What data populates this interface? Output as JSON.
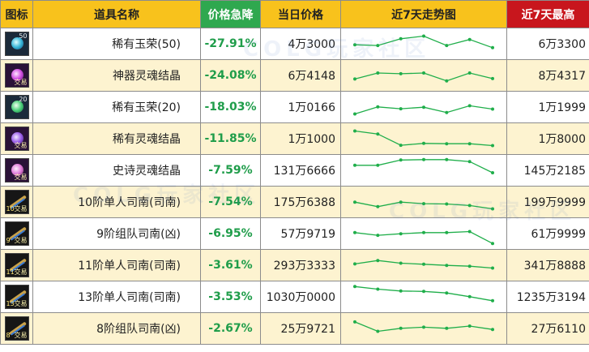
{
  "header": {
    "icon": "图标",
    "name": "道具名称",
    "drop": "价格急降",
    "price": "当日价格",
    "trend": "近7天走势图",
    "max7": "近7天最高"
  },
  "colors": {
    "header_bg": "#f8c21c",
    "drop_header_bg": "#2fa84f",
    "max_header_bg": "#c8161d",
    "drop_text": "#1f9d4a",
    "row_alt_bg": "#fdf3d0",
    "sparkline": "#1fae4a"
  },
  "watermark": "COLG玩家社区",
  "rows": [
    {
      "icon": {
        "name": "rare-jade-icon",
        "style": "blue",
        "num": "50",
        "trade": ""
      },
      "name": "稀有玉荣(50)",
      "drop": "-27.91%",
      "price": "4万3000",
      "max7": "6万3300",
      "trend": [
        3,
        2.8,
        4.6,
        5.3,
        2.8,
        4.4,
        2.2
      ]
    },
    {
      "icon": {
        "name": "artifact-soul-crystal-icon",
        "style": "purple",
        "num": "",
        "trade": "交易"
      },
      "name": "神器灵魂结晶",
      "drop": "-24.08%",
      "price": "6万4148",
      "max7": "8万4317",
      "trend": [
        2.3,
        3.9,
        3.7,
        3.9,
        1.8,
        3.9,
        2.4
      ]
    },
    {
      "icon": {
        "name": "rare-jade-icon",
        "style": "green",
        "num": "20",
        "trade": ""
      },
      "name": "稀有玉荣(20)",
      "drop": "-18.03%",
      "price": "1万0166",
      "max7": "1万1999",
      "trend": [
        1.4,
        3.3,
        2.8,
        3.2,
        1.8,
        3.6,
        2.7
      ]
    },
    {
      "icon": {
        "name": "rare-soul-crystal-icon",
        "style": "violet",
        "num": "",
        "trade": "交易"
      },
      "name": "稀有灵魂结晶",
      "drop": "-11.85%",
      "price": "1万1000",
      "max7": "1万8000",
      "trend": [
        5.3,
        4.5,
        1.5,
        2.0,
        1.9,
        1.9,
        1.4
      ]
    },
    {
      "icon": {
        "name": "epic-soul-crystal-icon",
        "style": "pink",
        "num": "",
        "trade": "交易"
      },
      "name": "史诗灵魂结晶",
      "drop": "-7.59%",
      "price": "131万6666",
      "max7": "145万2185",
      "trend": [
        4.6,
        4.6,
        6.0,
        6.1,
        6.1,
        5.6,
        2.6
      ]
    },
    {
      "icon": {
        "name": "tier10-solo-sinan-icon",
        "style": "blade",
        "num": "10",
        "trade": "交易"
      },
      "name": "10阶单人司南(司南)",
      "drop": "-7.54%",
      "price": "175万6388",
      "max7": "199万9999",
      "trend": [
        3.2,
        2.0,
        3.2,
        2.8,
        2.7,
        2.3,
        1.4
      ]
    },
    {
      "icon": {
        "name": "tier9-party-sinan-icon",
        "style": "blade",
        "num": "9",
        "trade": "交易"
      },
      "name": "9阶组队司南(凶)",
      "drop": "-6.95%",
      "price": "57万9719",
      "max7": "61万9999",
      "trend": [
        3.5,
        2.8,
        3.2,
        3.5,
        3.5,
        3.8,
        0.6
      ]
    },
    {
      "icon": {
        "name": "tier11-solo-sinan-icon",
        "style": "blade",
        "num": "11",
        "trade": "交易"
      },
      "name": "11阶单人司南(司南)",
      "drop": "-3.61%",
      "price": "293万3333",
      "max7": "341万8888",
      "trend": [
        3.6,
        4.5,
        3.8,
        3.5,
        3.2,
        3.0,
        2.5
      ]
    },
    {
      "icon": {
        "name": "tier13-solo-sinan-icon",
        "style": "blade",
        "num": "13",
        "trade": "交易"
      },
      "name": "13阶单人司南(司南)",
      "drop": "-3.53%",
      "price": "1030万0000",
      "max7": "1235万3194",
      "trend": [
        6.0,
        5.3,
        4.8,
        4.7,
        4.3,
        3.3,
        2.2
      ]
    },
    {
      "icon": {
        "name": "tier8-party-sinan-icon",
        "style": "blade",
        "num": "8",
        "trade": "交易"
      },
      "name": "8阶组队司南(凶)",
      "drop": "-2.67%",
      "price": "25万9721",
      "max7": "27万6110",
      "trend": [
        5.0,
        2.5,
        3.3,
        3.6,
        3.3,
        3.9,
        3.0
      ]
    }
  ]
}
